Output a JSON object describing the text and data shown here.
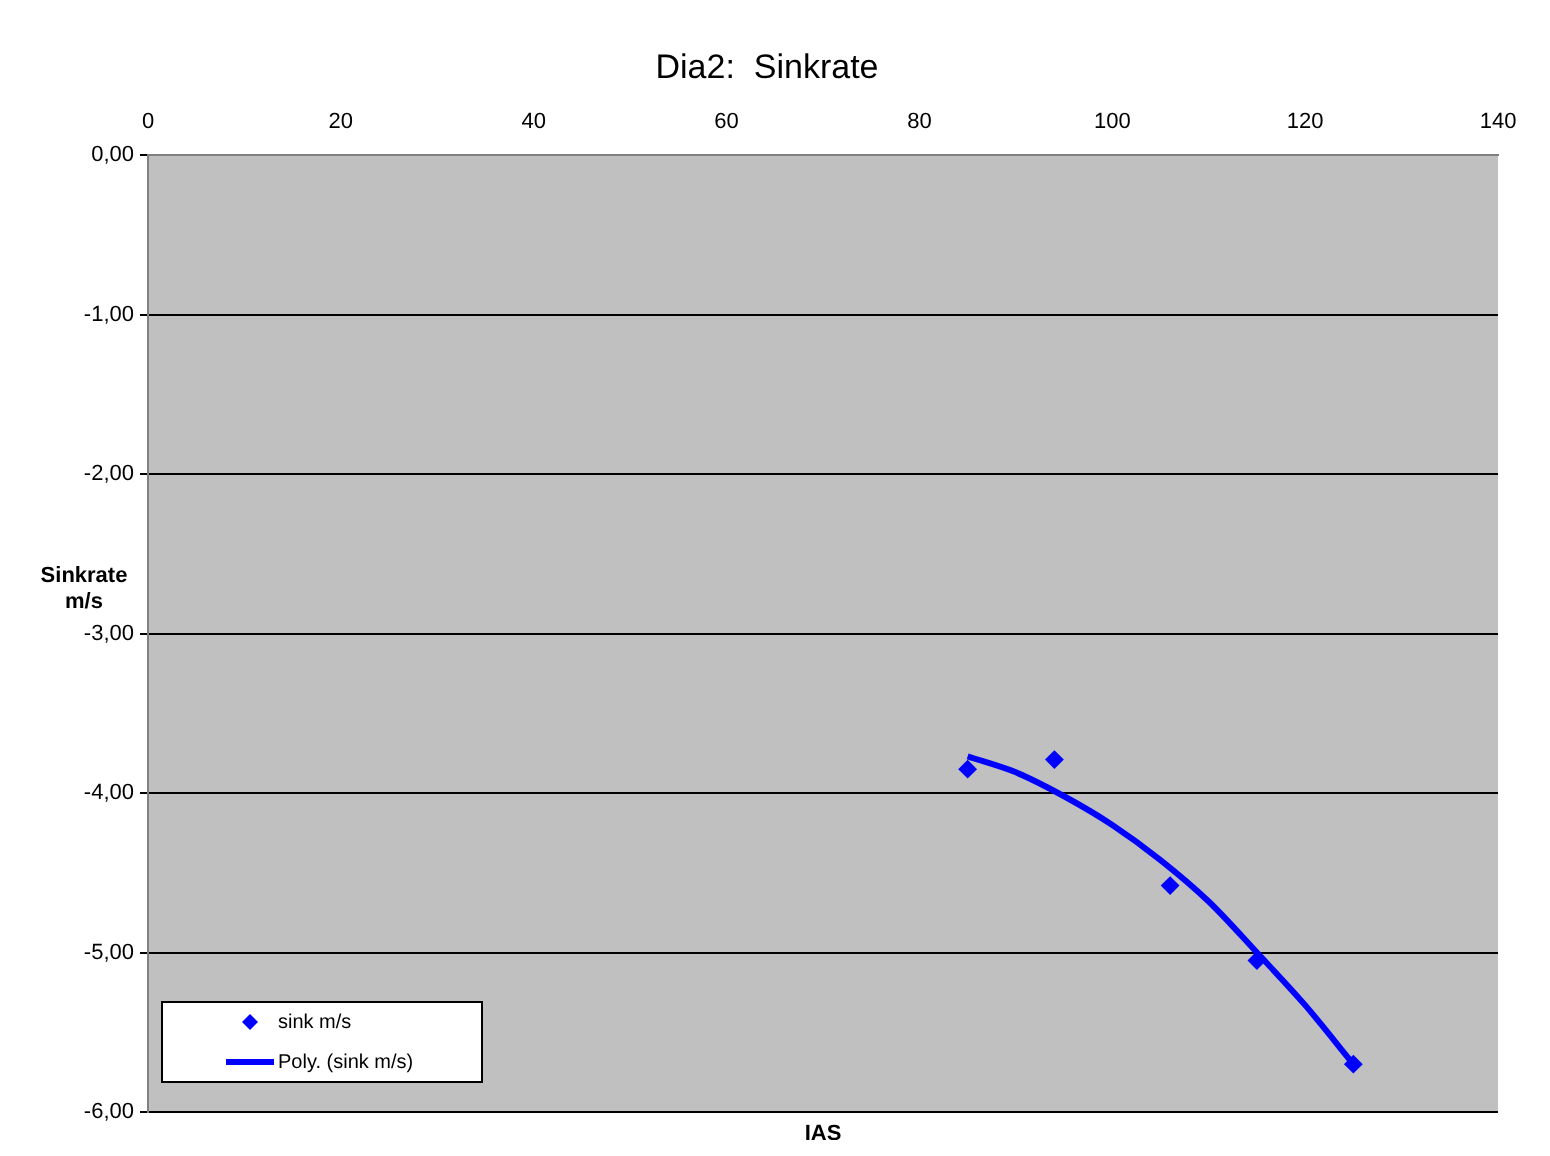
{
  "chart_data": {
    "type": "scatter",
    "title": "Dia2:  Sinkrate",
    "xlabel": "IAS",
    "ylabel": "Sinkrate m/s",
    "series": [
      {
        "name": "sink m/s",
        "color": "#0000ff",
        "marker": "diamond",
        "x": [
          85,
          94,
          106,
          115,
          125
        ],
        "values": [
          -3.85,
          -3.79,
          -4.58,
          -5.05,
          -5.7
        ]
      },
      {
        "name": "Poly. (sink m/s)",
        "type": "line",
        "color": "#0000ff",
        "marker": "none",
        "x": [
          85,
          90,
          95,
          100,
          105,
          110,
          115,
          120,
          125
        ],
        "values": [
          -3.77,
          -3.87,
          -4.02,
          -4.2,
          -4.42,
          -4.68,
          -5.0,
          -5.33,
          -5.7
        ]
      }
    ],
    "xlim": [
      0,
      140
    ],
    "xticks": [
      0,
      20,
      40,
      60,
      80,
      100,
      120,
      140
    ],
    "ylim": [
      -6,
      0
    ],
    "yticks": [
      {
        "value": 0,
        "label": "0,00"
      },
      {
        "value": -1,
        "label": "-1,00"
      },
      {
        "value": -2,
        "label": "-2,00"
      },
      {
        "value": -3,
        "label": "-3,00"
      },
      {
        "value": -4,
        "label": "-4,00"
      },
      {
        "value": -5,
        "label": "-5,00"
      },
      {
        "value": -6,
        "label": "-6,00"
      }
    ],
    "grid": "y",
    "legend": "bottom left"
  }
}
